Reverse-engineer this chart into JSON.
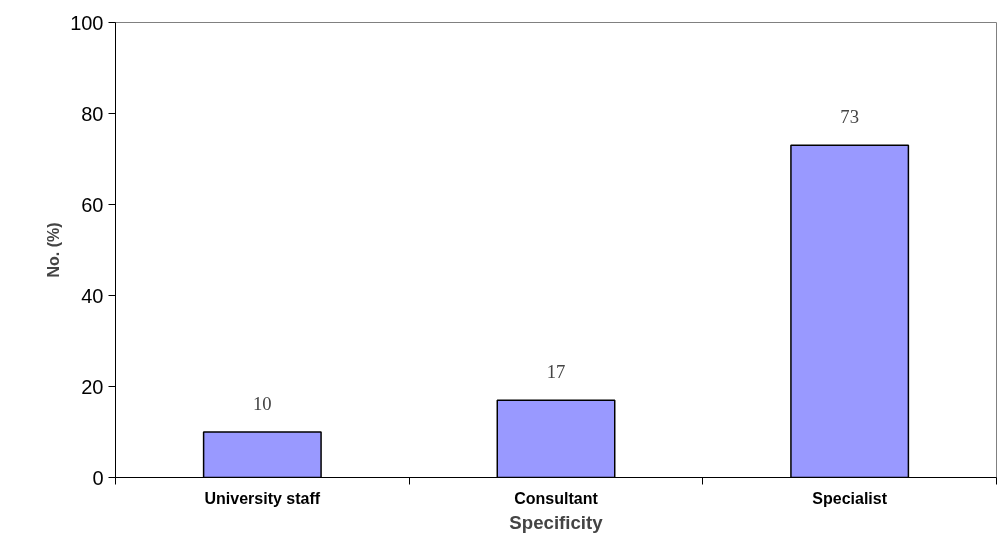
{
  "chart_data": {
    "type": "bar",
    "xlabel": "Specificity",
    "ylabel": "No. (%)",
    "categories": [
      "University staff",
      "Consultant",
      "Specialist"
    ],
    "values": [
      10,
      17,
      73
    ],
    "color": "#9999ff",
    "ylim": [
      0,
      100
    ],
    "yticks": [
      0,
      20,
      40,
      60,
      80,
      100
    ],
    "grid": false,
    "data_labels": true
  }
}
